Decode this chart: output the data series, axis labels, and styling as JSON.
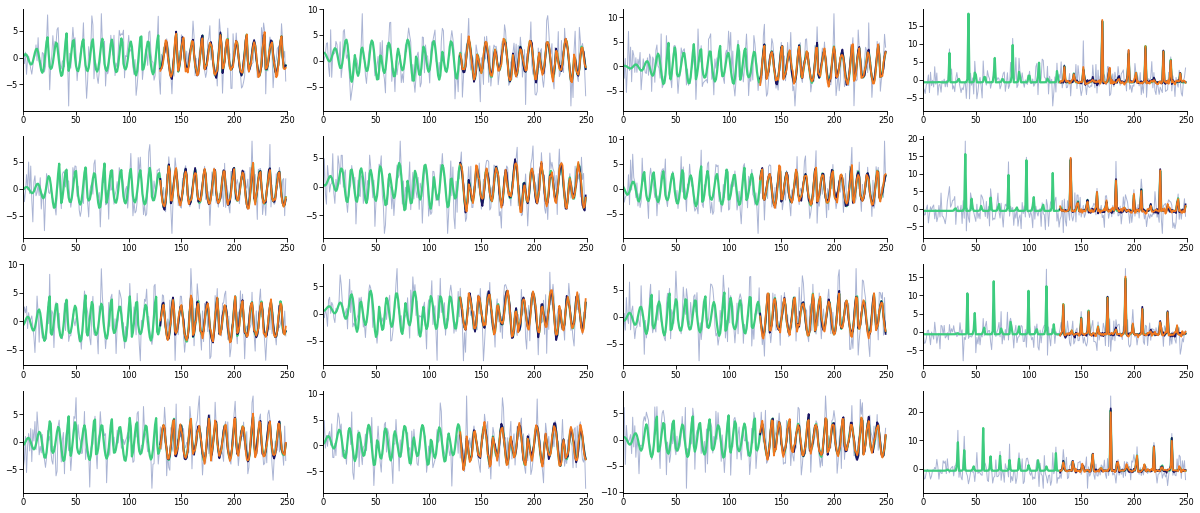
{
  "n_rows": 4,
  "n_cols": 4,
  "n_points": 250,
  "noise_std": 2.5,
  "colors": {
    "noisy": "#aab4d4",
    "true": "#3dcc7e",
    "lstm": "#f07820",
    "vae": "#1a1464"
  },
  "linewidths": {
    "noisy": 0.7,
    "true": 1.6,
    "lstm": 1.3,
    "vae": 1.3
  },
  "figsize": [
    12.0,
    5.13
  ],
  "dpi": 100
}
